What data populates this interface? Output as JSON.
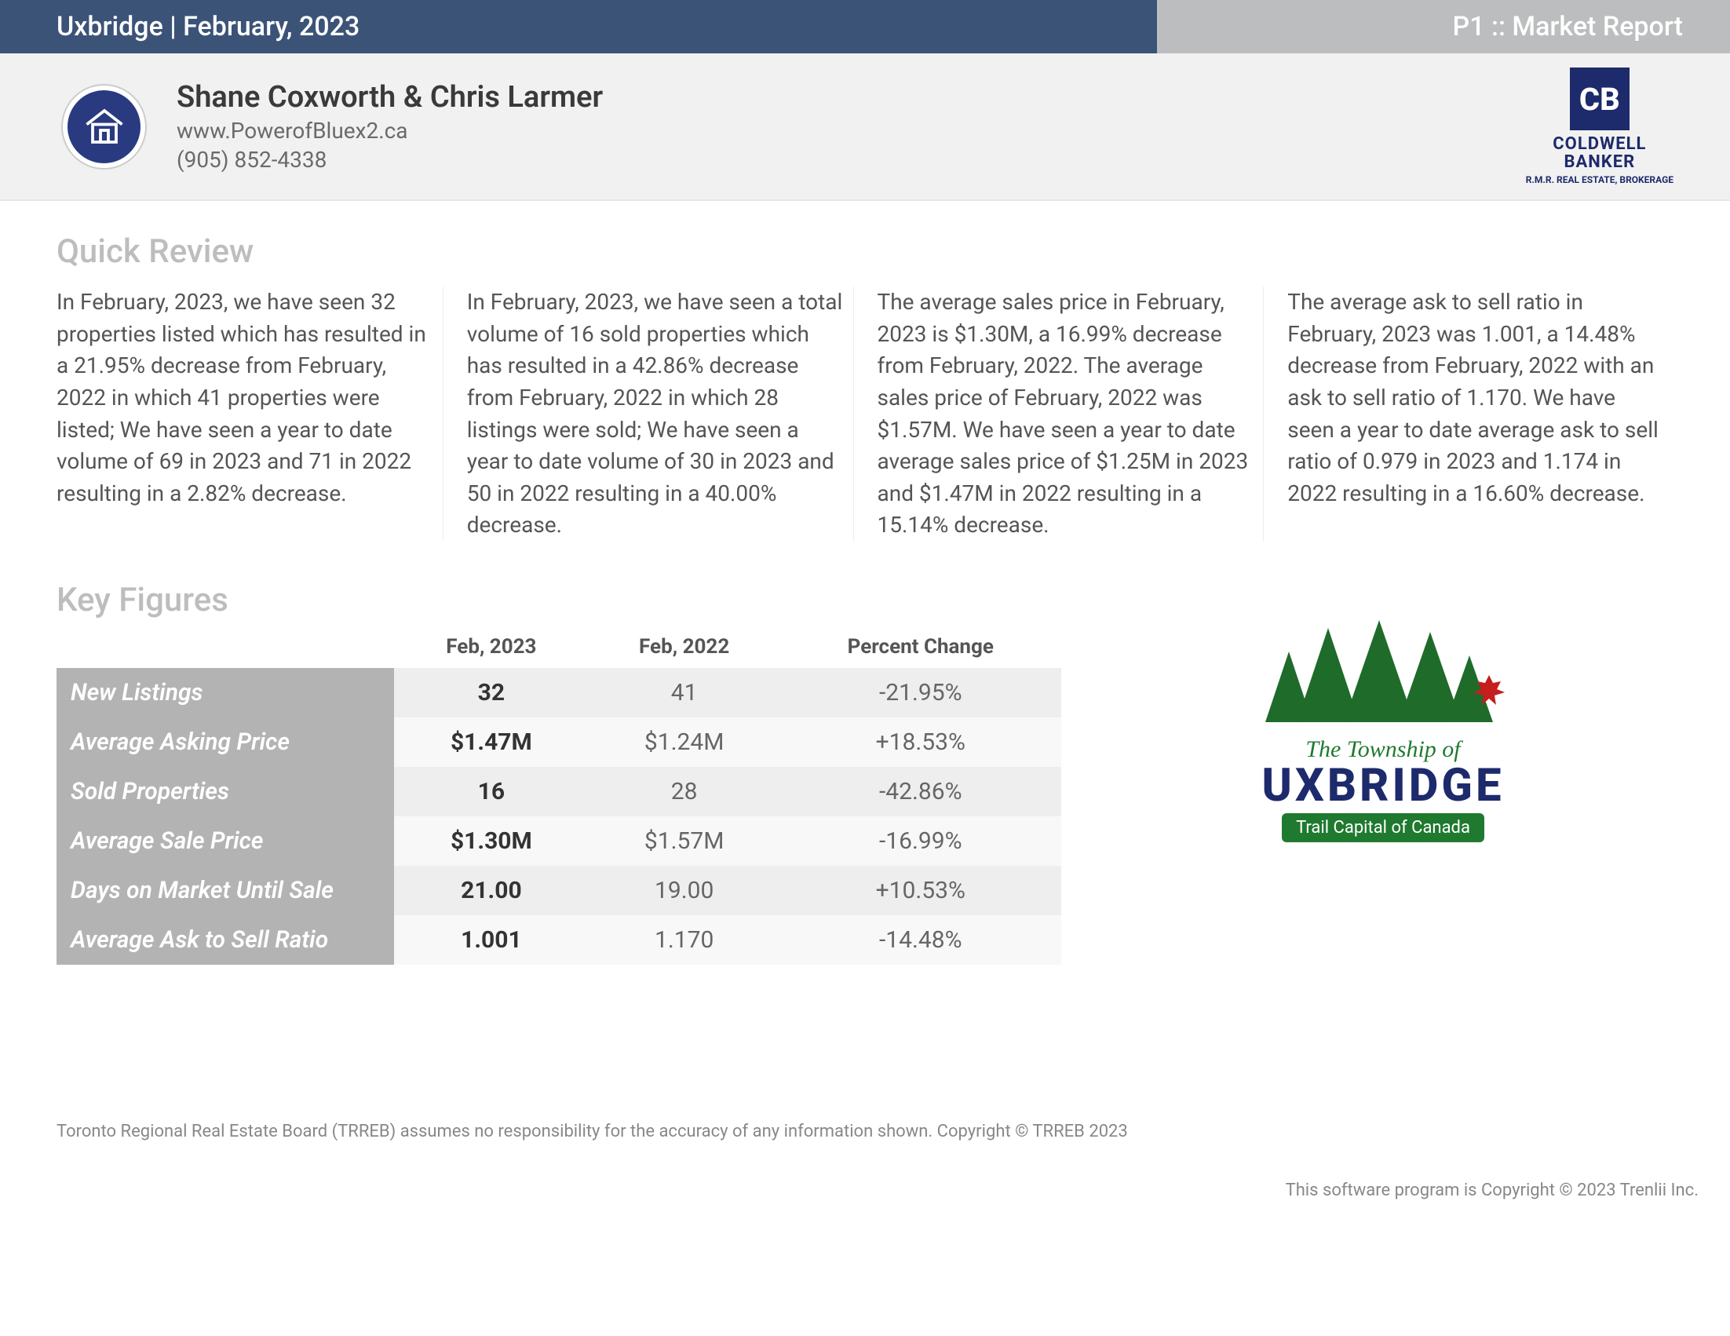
{
  "topbar": {
    "left": "Uxbridge | February, 2023",
    "right": "P1 :: Market Report"
  },
  "agent": {
    "name": "Shane Coxworth & Chris Larmer",
    "site": "www.PowerofBluex2.ca",
    "phone": "(905) 852-4338"
  },
  "brand": {
    "line1": "COLDWELL",
    "line2": "BANKER",
    "sub": "R.M.R. REAL ESTATE, BROKERAGE"
  },
  "sections": {
    "quick_review": "Quick Review",
    "key_figures": "Key Figures"
  },
  "review": [
    "In February, 2023, we have seen 32 properties listed which has resulted in a 21.95% decrease from February, 2022 in which 41 properties were listed; We have seen a year to date volume of 69 in 2023 and 71 in 2022 resulting in a 2.82% decrease.",
    "In February, 2023, we have seen a total volume of 16 sold properties which has resulted in a 42.86% decrease from February, 2022 in which 28 listings were sold; We have seen a year to date volume of 30 in 2023 and 50 in 2022 resulting in a 40.00% decrease.",
    "The average sales price in February, 2023 is $1.30M, a 16.99% decrease from February, 2022. The average sales price of February, 2022 was $1.57M. We have seen a year to date average sales price of $1.25M in 2023 and $1.47M in 2022 resulting in a 15.14% decrease.",
    "The average ask to sell ratio in February, 2023 was 1.001, a 14.48% decrease from February, 2022 with an ask to sell ratio of 1.170. We have seen a year to date average ask to sell ratio of 0.979 in 2023 and 1.174 in 2022 resulting in a 16.60% decrease."
  ],
  "table": {
    "headers": [
      "",
      "Feb, 2023",
      "Feb, 2022",
      "Percent Change"
    ],
    "rows": [
      {
        "label": "New Listings",
        "v1": "32",
        "v2": "41",
        "v3": "-21.95%"
      },
      {
        "label": "Average Asking Price",
        "v1": "$1.47M",
        "v2": "$1.24M",
        "v3": "+18.53%"
      },
      {
        "label": "Sold Properties",
        "v1": "16",
        "v2": "28",
        "v3": "-42.86%"
      },
      {
        "label": "Average Sale Price",
        "v1": "$1.30M",
        "v2": "$1.57M",
        "v3": "-16.99%"
      },
      {
        "label": "Days on Market Until Sale",
        "v1": "21.00",
        "v2": "19.00",
        "v3": "+10.53%"
      },
      {
        "label": "Average Ask to Sell Ratio",
        "v1": "1.001",
        "v2": "1.170",
        "v3": "-14.48%"
      }
    ]
  },
  "township": {
    "line1": "The Township of",
    "line2": "UXBRIDGE",
    "badge": "Trail Capital of Canada"
  },
  "footer": {
    "disclaimer": "Toronto Regional Real Estate Board (TRREB) assumes no responsibility for the accuracy of any information shown. Copyright © TRREB 2023",
    "software": "This software program is Copyright © 2023 Trenlii Inc."
  },
  "colors": {
    "topbar_blue": "#3c5378",
    "topbar_gray": "#bcbdbe",
    "brand_navy": "#1d2a6b",
    "township_green": "#1f7a2f"
  }
}
